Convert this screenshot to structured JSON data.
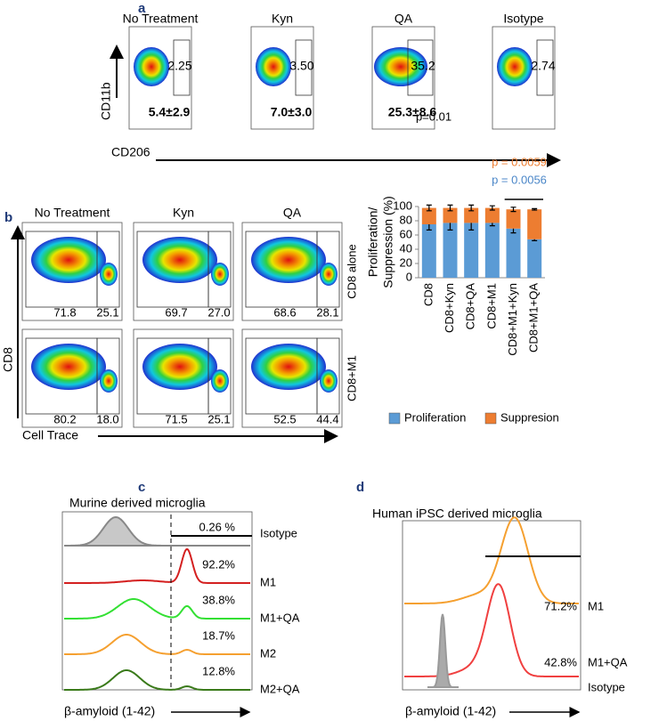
{
  "panel_a": {
    "label": "a",
    "y_axis": "CD11b",
    "x_axis": "CD206",
    "plots": [
      {
        "title": "No Treatment",
        "gate": "2.25",
        "mean": "5.4±2.9"
      },
      {
        "title": "Kyn",
        "gate": "3.50",
        "mean": "7.0±3.0"
      },
      {
        "title": "QA",
        "gate": "35.2",
        "mean": "25.3±8.6"
      },
      {
        "title": "Isotype",
        "gate": "2.74"
      }
    ],
    "p_value": "p=0.01"
  },
  "panel_b": {
    "label": "b",
    "y_axis": "CD8",
    "x_axis": "Cell Trace",
    "columns": [
      "No Treatment",
      "Kyn",
      "QA"
    ],
    "rows": [
      {
        "name": "CD8 alone",
        "gates": [
          [
            "71.8",
            "25.1"
          ],
          [
            "69.7",
            "27.0"
          ],
          [
            "68.6",
            "28.1"
          ]
        ]
      },
      {
        "name": "CD8+M1",
        "gates": [
          [
            "80.2",
            "18.0"
          ],
          [
            "71.5",
            "25.1"
          ],
          [
            "52.5",
            "44.4"
          ]
        ]
      }
    ]
  },
  "chart_data": {
    "type": "bar",
    "stacked": true,
    "y_label": [
      "Proliferation/",
      "Suppression (%)"
    ],
    "categories": [
      "CD8",
      "CD8+Kyn",
      "CD8+QA",
      "CD8+M1",
      "CD8+M1+Kyn",
      "CD8+M1+QA"
    ],
    "series": [
      {
        "name": "Proliferation",
        "color": "#5b9bd5",
        "values": [
          75,
          77,
          77,
          77,
          69,
          54
        ],
        "errors": [
          8,
          10,
          10,
          4,
          6,
          2
        ]
      },
      {
        "name": "Suppresion",
        "color": "#ed7d31",
        "values": [
          23,
          21,
          21,
          21,
          27,
          42
        ],
        "errors": [
          4,
          4,
          4,
          3,
          3,
          1
        ]
      }
    ],
    "ylim": [
      0,
      100
    ],
    "yticks": [
      0,
      20,
      40,
      60,
      80,
      100
    ],
    "annotations": [
      {
        "text": "p = 0.0059",
        "color": "#ed7d31"
      },
      {
        "text": "p = 0.0056",
        "color": "#4a86c8"
      }
    ],
    "legend": "bottom"
  },
  "panel_c": {
    "label": "c",
    "title": "Murine derived microglia",
    "x_axis": "β-amyloid (1-42)",
    "tracks": [
      {
        "name": "Isotype",
        "percent": "0.26 %"
      },
      {
        "name": "M1",
        "percent": "92.2%"
      },
      {
        "name": "M1+QA",
        "percent": "38.8%"
      },
      {
        "name": "M2",
        "percent": "18.7%"
      },
      {
        "name": "M2+QA",
        "percent": "12.8%"
      }
    ]
  },
  "panel_d": {
    "label": "d",
    "title": "Human iPSC derived microglia",
    "x_axis": "β-amyloid (1-42)",
    "tracks": [
      {
        "name": "M1",
        "percent": "71.2%"
      },
      {
        "name": "M1+QA",
        "percent": "42.8%"
      },
      {
        "name": "Isotype"
      }
    ]
  }
}
